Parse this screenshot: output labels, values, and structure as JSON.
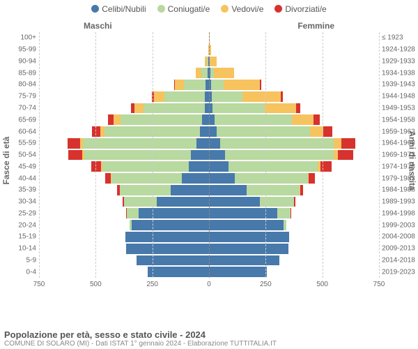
{
  "chart": {
    "type": "population-pyramid",
    "background_color": "#ffffff",
    "grid_color": "#cccccc",
    "center_line_color": "#8a8a8a",
    "label_color": "#666666",
    "label_fontsize": 10,
    "axis_title_fontsize": 12,
    "legend_fontsize": 12,
    "axis_left_title": "Fasce di età",
    "axis_right_title": "Anni di nascita",
    "header_male": "Maschi",
    "header_female": "Femmine",
    "legend": [
      {
        "label": "Celibi/Nubili",
        "color": "#4779ab"
      },
      {
        "label": "Coniugati/e",
        "color": "#b8d9a0"
      },
      {
        "label": "Vedovi/e",
        "color": "#f7c35f"
      },
      {
        "label": "Divorziati/e",
        "color": "#d7322e"
      }
    ],
    "x_max": 750,
    "x_ticks": [
      750,
      500,
      250,
      0,
      250,
      500,
      750
    ],
    "age_labels": [
      "100+",
      "95-99",
      "90-94",
      "85-89",
      "80-84",
      "75-79",
      "70-74",
      "65-69",
      "60-64",
      "55-59",
      "50-54",
      "45-49",
      "40-44",
      "35-39",
      "30-34",
      "25-29",
      "20-24",
      "15-19",
      "10-14",
      "5-9",
      "0-4"
    ],
    "birth_labels": [
      "≤ 1923",
      "1924-1928",
      "1929-1933",
      "1934-1938",
      "1939-1943",
      "1944-1948",
      "1949-1953",
      "1954-1958",
      "1959-1963",
      "1964-1968",
      "1969-1973",
      "1974-1978",
      "1979-1983",
      "1984-1988",
      "1989-1993",
      "1994-1998",
      "1999-2003",
      "2004-2008",
      "2009-2013",
      "2014-2018",
      "2019-2023"
    ],
    "male": {
      "single": [
        0,
        0,
        3,
        5,
        15,
        18,
        20,
        30,
        40,
        55,
        80,
        90,
        120,
        170,
        230,
        310,
        340,
        370,
        365,
        320,
        270
      ],
      "married": [
        0,
        0,
        5,
        30,
        95,
        180,
        270,
        360,
        420,
        500,
        470,
        380,
        310,
        225,
        145,
        55,
        10,
        0,
        0,
        0,
        0
      ],
      "widowed": [
        1,
        2,
        10,
        25,
        40,
        45,
        40,
        30,
        20,
        15,
        10,
        5,
        3,
        0,
        0,
        0,
        0,
        0,
        0,
        0,
        0
      ],
      "divorced": [
        0,
        0,
        0,
        0,
        5,
        8,
        15,
        25,
        35,
        55,
        60,
        45,
        25,
        10,
        5,
        2,
        0,
        0,
        0,
        0,
        0
      ]
    },
    "female": {
      "single": [
        0,
        0,
        2,
        5,
        10,
        12,
        15,
        25,
        35,
        50,
        70,
        85,
        115,
        165,
        225,
        300,
        330,
        355,
        350,
        310,
        255
      ],
      "married": [
        0,
        0,
        2,
        15,
        55,
        135,
        230,
        340,
        410,
        500,
        480,
        395,
        320,
        235,
        150,
        60,
        12,
        0,
        0,
        0,
        0
      ],
      "widowed": [
        2,
        8,
        30,
        90,
        160,
        170,
        140,
        95,
        60,
        35,
        20,
        12,
        5,
        2,
        0,
        0,
        0,
        0,
        0,
        0,
        0
      ],
      "divorced": [
        0,
        0,
        0,
        0,
        5,
        8,
        18,
        30,
        40,
        60,
        65,
        50,
        28,
        12,
        5,
        2,
        0,
        0,
        0,
        0,
        0
      ]
    }
  },
  "footer": {
    "title": "Popolazione per età, sesso e stato civile - 2024",
    "subtitle": "COMUNE DI SOLARO (MI) - Dati ISTAT 1° gennaio 2024 - Elaborazione TUTTITALIA.IT"
  }
}
